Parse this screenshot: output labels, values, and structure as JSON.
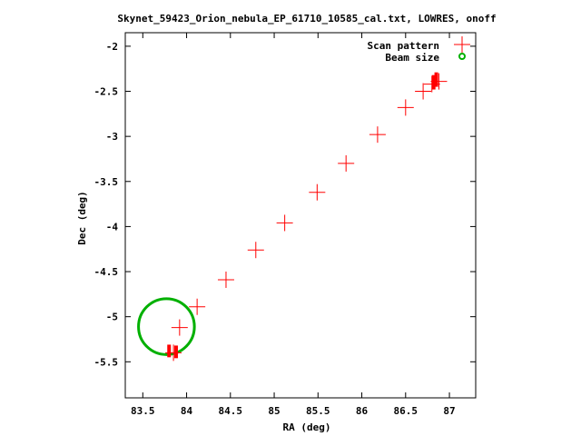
{
  "chart_data": {
    "type": "scatter",
    "title": "Skynet_59423_Orion_nebula_EP_61710_10585_cal.txt, LOWRES, onoff",
    "xlabel": "RA (deg)",
    "ylabel": "Dec (deg)",
    "xlim": [
      83.3,
      87.3
    ],
    "ylim": [
      -5.9,
      -1.85
    ],
    "x_ticks": [
      83.5,
      84,
      84.5,
      85,
      85.5,
      86,
      86.5,
      87
    ],
    "x_tick_labels": [
      "83.5",
      "84",
      "84.5",
      "85",
      "85.5",
      "86",
      "86.5",
      "87"
    ],
    "y_ticks": [
      -2,
      -2.5,
      -3,
      -3.5,
      -4,
      -4.5,
      -5,
      -5.5
    ],
    "y_tick_labels": [
      "-2",
      "-2.5",
      "-3",
      "-3.5",
      "-4",
      "-4.5",
      "-5",
      "-5.5"
    ],
    "grid": false,
    "legend_position": "top-right",
    "series": [
      {
        "name": "Scan pattern",
        "color": "#ff0000",
        "marker": "plus",
        "points": [
          {
            "x": 83.85,
            "y": -5.4
          },
          {
            "x": 83.92,
            "y": -5.12
          },
          {
            "x": 84.12,
            "y": -4.89
          },
          {
            "x": 84.45,
            "y": -4.59
          },
          {
            "x": 84.79,
            "y": -4.26
          },
          {
            "x": 85.12,
            "y": -3.96
          },
          {
            "x": 85.49,
            "y": -3.62
          },
          {
            "x": 85.82,
            "y": -3.3
          },
          {
            "x": 86.18,
            "y": -2.98
          },
          {
            "x": 86.5,
            "y": -2.68
          },
          {
            "x": 86.7,
            "y": -2.5
          },
          {
            "x": 86.8,
            "y": -2.42
          },
          {
            "x": 86.88,
            "y": -2.39
          }
        ],
        "dense_clusters": [
          {
            "x": 83.8,
            "y": -5.38,
            "spread_y": 0.07
          },
          {
            "x": 83.88,
            "y": -5.39,
            "spread_y": 0.07
          },
          {
            "x": 86.82,
            "y": -2.4,
            "spread_y": 0.08
          },
          {
            "x": 86.85,
            "y": -2.37,
            "spread_y": 0.08
          }
        ]
      },
      {
        "name": "Beam size",
        "color": "#00b000",
        "marker": "circle",
        "center": {
          "x": 83.77,
          "y": -5.11
        },
        "radius_deg": 0.31
      }
    ]
  }
}
